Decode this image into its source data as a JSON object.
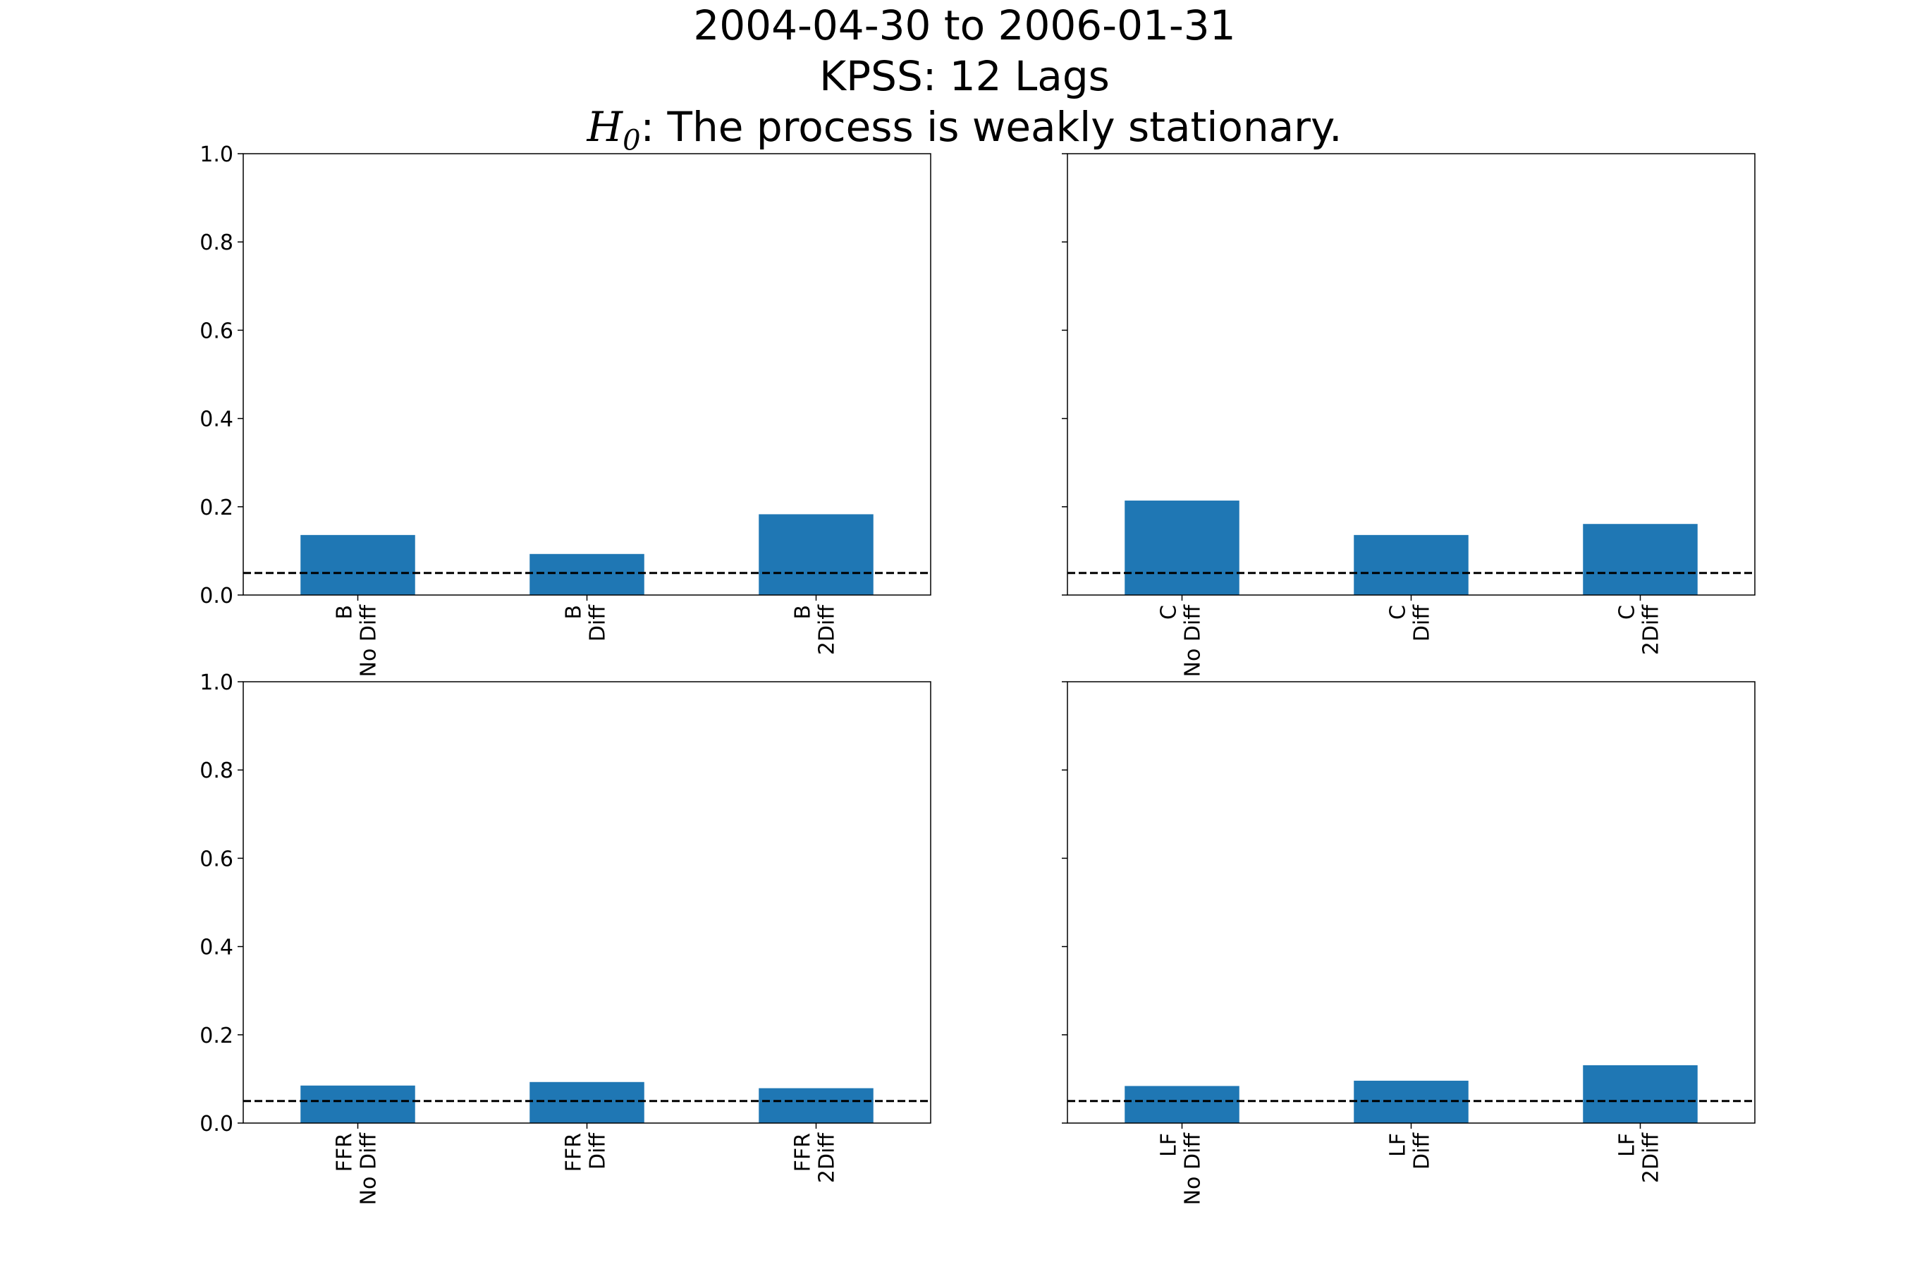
{
  "title": {
    "line1": "2004-04-30 to 2006-01-31",
    "line2": "KPSS: 12 Lags",
    "line3_symbol": "H",
    "line3_subscript": "0",
    "line3_text": ": The process is weakly stationary."
  },
  "colors": {
    "bar": "#1f77b4",
    "threshold_line": "#000000",
    "axes": "#000000"
  },
  "chart_data": [
    {
      "type": "bar",
      "categories": [
        "B\nNo Diff",
        "B\nDiff",
        "B\n2Diff"
      ],
      "values": [
        0.136,
        0.093,
        0.183
      ],
      "ylim": [
        0,
        1
      ],
      "yticks": [
        "0.0",
        "0.2",
        "0.4",
        "0.6",
        "0.8",
        "1.0"
      ],
      "show_ytick_labels": true,
      "reference_line": 0.05,
      "reference_style": "dashed",
      "grid": false
    },
    {
      "type": "bar",
      "categories": [
        "C\nNo Diff",
        "C\nDiff",
        "C\n2Diff"
      ],
      "values": [
        0.214,
        0.136,
        0.161
      ],
      "ylim": [
        0,
        1
      ],
      "yticks": [
        "0.0",
        "0.2",
        "0.4",
        "0.6",
        "0.8",
        "1.0"
      ],
      "show_ytick_labels": false,
      "reference_line": 0.05,
      "reference_style": "dashed",
      "grid": false
    },
    {
      "type": "bar",
      "categories": [
        "FFR\nNo Diff",
        "FFR\nDiff",
        "FFR\n2Diff"
      ],
      "values": [
        0.085,
        0.093,
        0.079
      ],
      "ylim": [
        0,
        1
      ],
      "yticks": [
        "0.0",
        "0.2",
        "0.4",
        "0.6",
        "0.8",
        "1.0"
      ],
      "show_ytick_labels": true,
      "reference_line": 0.05,
      "reference_style": "dashed",
      "grid": false
    },
    {
      "type": "bar",
      "categories": [
        "LF\nNo Diff",
        "LF\nDiff",
        "LF\n2Diff"
      ],
      "values": [
        0.084,
        0.096,
        0.131
      ],
      "ylim": [
        0,
        1
      ],
      "yticks": [
        "0.0",
        "0.2",
        "0.4",
        "0.6",
        "0.8",
        "1.0"
      ],
      "show_ytick_labels": false,
      "reference_line": 0.05,
      "reference_style": "dashed",
      "grid": false
    }
  ]
}
